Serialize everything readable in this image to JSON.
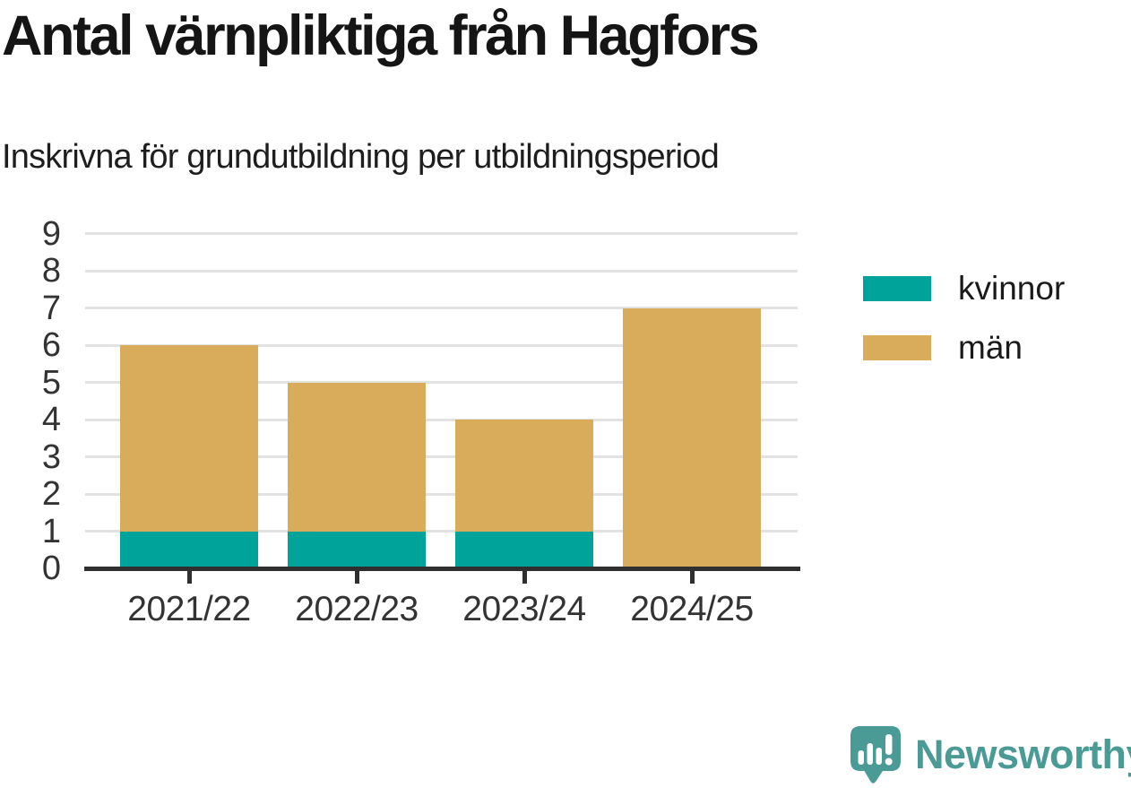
{
  "title": "Antal värnpliktiga från Hagfors",
  "subtitle": "Inskrivna för grundutbildning per utbildningsperiod",
  "chart_data": {
    "type": "bar",
    "stacked": true,
    "title": "Antal värnpliktiga från Hagfors",
    "subtitle": "Inskrivna för grundutbildning per utbildningsperiod",
    "categories": [
      "2021/22",
      "2022/23",
      "2023/24",
      "2024/25"
    ],
    "series": [
      {
        "name": "kvinnor",
        "color": "#00a39a",
        "values": [
          1,
          1,
          1,
          0
        ]
      },
      {
        "name": "män",
        "color": "#d9ac5c",
        "values": [
          5,
          4,
          3,
          7
        ]
      }
    ],
    "xlabel": "",
    "ylabel": "",
    "ylim": [
      0,
      9
    ],
    "yticks": [
      0,
      1,
      2,
      3,
      4,
      5,
      6,
      7,
      8,
      9
    ],
    "grid": true,
    "legend_position": "right"
  },
  "legend": {
    "items": [
      {
        "label": "kvinnor",
        "color": "#00a39a"
      },
      {
        "label": "män",
        "color": "#d9ac5c"
      }
    ]
  },
  "branding": {
    "wordmark": "Newsworthy",
    "color": "#4a9a96",
    "logo_icon": "newsworthy-speech-bubble-chart-icon"
  },
  "colors": {
    "background": "#ffffff",
    "gridline": "#e2e2e2",
    "axis": "#2f2f2f",
    "tick_label": "#333333",
    "title_text": "#151515"
  }
}
